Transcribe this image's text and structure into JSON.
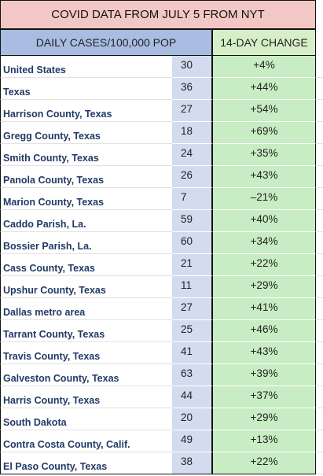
{
  "title": "COVID DATA FROM JULY 5 FROM NYT",
  "headers": {
    "daily_cases": "DAILY CASES/100,000 POP",
    "change": "14-DAY CHANGE"
  },
  "rows": [
    {
      "name": "United States",
      "value": "30",
      "change": "+4%"
    },
    {
      "name": "Texas",
      "value": "36",
      "change": "+44%"
    },
    {
      "name": "Harrison County, Texas",
      "value": "27",
      "change": "+54%"
    },
    {
      "name": "Gregg County, Texas",
      "value": "18",
      "change": "+69%"
    },
    {
      "name": "Smith County, Texas",
      "value": "24",
      "change": "+35%"
    },
    {
      "name": "Panola County, Texas",
      "value": "26",
      "change": "+43%"
    },
    {
      "name": "Marion County, Texas",
      "value": "7",
      "change": "–21%"
    },
    {
      "name": "Caddo Parish, La.",
      "value": "59",
      "change": "+40%"
    },
    {
      "name": "Bossier Parish, La.",
      "value": "60",
      "change": "+34%"
    },
    {
      "name": "Cass County, Texas",
      "value": "21",
      "change": "+22%"
    },
    {
      "name": "Upshur County, Texas",
      "value": "11",
      "change": "+29%"
    },
    {
      "name": "Dallas metro area",
      "value": "27",
      "change": "+41%"
    },
    {
      "name": "Tarrant County, Texas",
      "value": "25",
      "change": "+46%"
    },
    {
      "name": "Travis County, Texas",
      "value": "41",
      "change": "+43%"
    },
    {
      "name": "Galveston County, Texas",
      "value": "63",
      "change": "+39%"
    },
    {
      "name": "Harris County, Texas",
      "value": "44",
      "change": "+37%"
    },
    {
      "name": "South Dakota",
      "value": "20",
      "change": "+29%"
    },
    {
      "name": "Contra Costa County, Calif.",
      "value": "49",
      "change": "+13%"
    },
    {
      "name": "El Paso County, Texas",
      "value": "38",
      "change": "+22%"
    }
  ],
  "colors": {
    "title_bg": "#f3c7c6",
    "header_left_bg": "#a9bde3",
    "header_right_bg": "#d7efc8",
    "value_bg": "#d3dcef",
    "change_bg": "#c8ecc3",
    "name_text": "#213a66"
  }
}
